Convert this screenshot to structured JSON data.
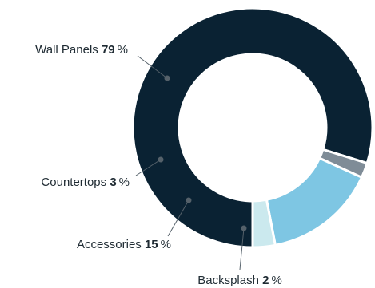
{
  "chart_data": {
    "type": "pie",
    "donut": true,
    "title": "",
    "unit": "%",
    "slices": [
      {
        "label": "Wall Panels",
        "value": 79,
        "color": "#0a2233"
      },
      {
        "label": "Backsplash",
        "value": 2,
        "color": "#7f8c97"
      },
      {
        "label": "Accessories",
        "value": 15,
        "color": "#7ec6e3"
      },
      {
        "label": "Countertops",
        "value": 3,
        "color": "#cbe9ee"
      }
    ],
    "start": "bottom",
    "direction": "clockwise"
  }
}
